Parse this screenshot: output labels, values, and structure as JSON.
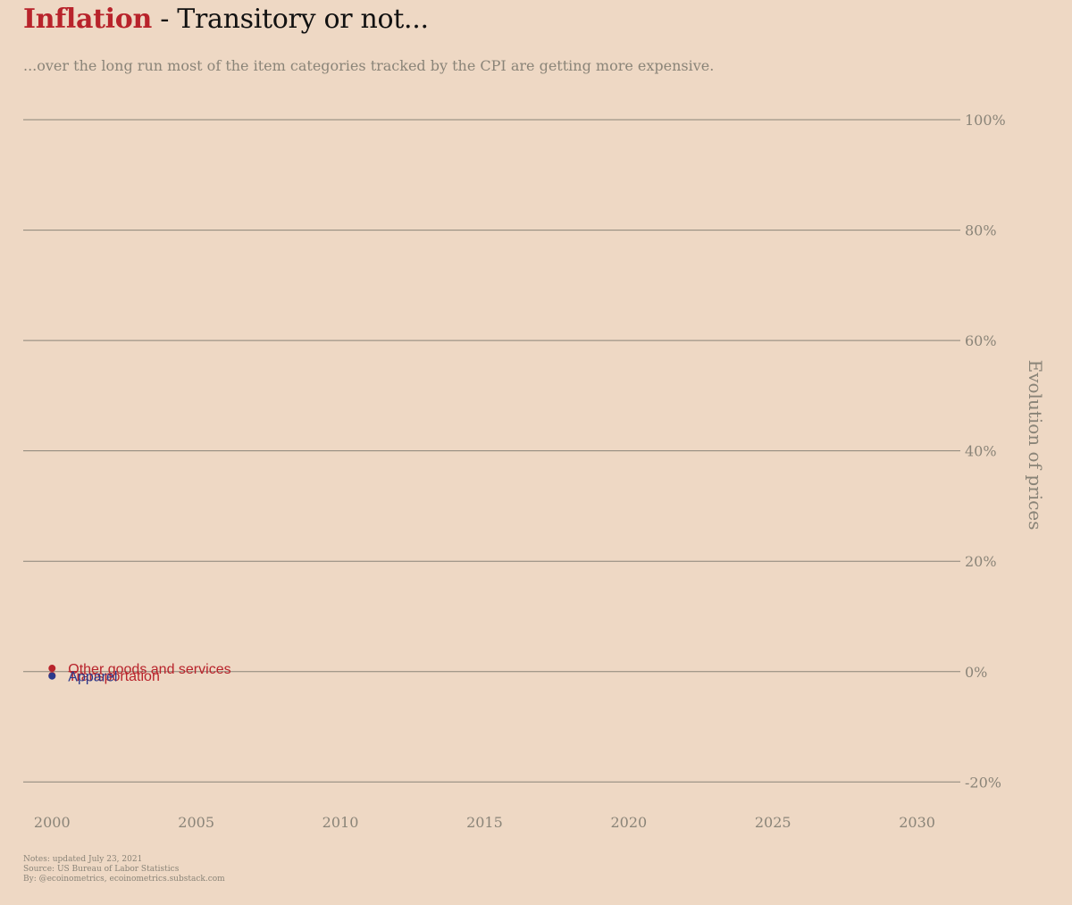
{
  "header": {
    "title_highlight": "Inflation",
    "title_rest": " - Transitory or not...",
    "subtitle": "...over the long run most of the item categories tracked by the CPI are getting more expensive."
  },
  "notes": {
    "line1": "Notes: updated July 23, 2021",
    "line2": "Source: US Bureau of Labor Statistics",
    "line3": "By: @ecoinometrics, ecoinometrics.substack.com"
  },
  "colors": {
    "background": "#eed8c4",
    "accent": "#b8232b",
    "negative": "#2b3a8c",
    "grid": "#8a8478"
  },
  "chart_data": {
    "type": "line",
    "ylabel": "Evolution of prices",
    "xlim": [
      1999,
      2031.5
    ],
    "ylim": [
      -24,
      106
    ],
    "x_ticks": [
      2000,
      2005,
      2010,
      2015,
      2020,
      2025,
      2030
    ],
    "y_ticks": [
      100,
      80,
      60,
      40,
      20,
      0,
      -20
    ],
    "y_tick_labels": [
      "100%",
      "80%",
      "60%",
      "40%",
      "20%",
      "0%",
      "-20%"
    ],
    "grid": true,
    "series": [
      {
        "name": "Other goods and services",
        "x": [
          2000
        ],
        "y": [
          0.6
        ],
        "color": "#b8232b"
      },
      {
        "name": "Transportation",
        "x": [
          2000
        ],
        "y": [
          -0.7
        ],
        "color": "#b8232b"
      },
      {
        "name": "Apparel",
        "x": [
          2000
        ],
        "y": [
          -0.8
        ],
        "color": "#2b3a8c"
      }
    ]
  }
}
